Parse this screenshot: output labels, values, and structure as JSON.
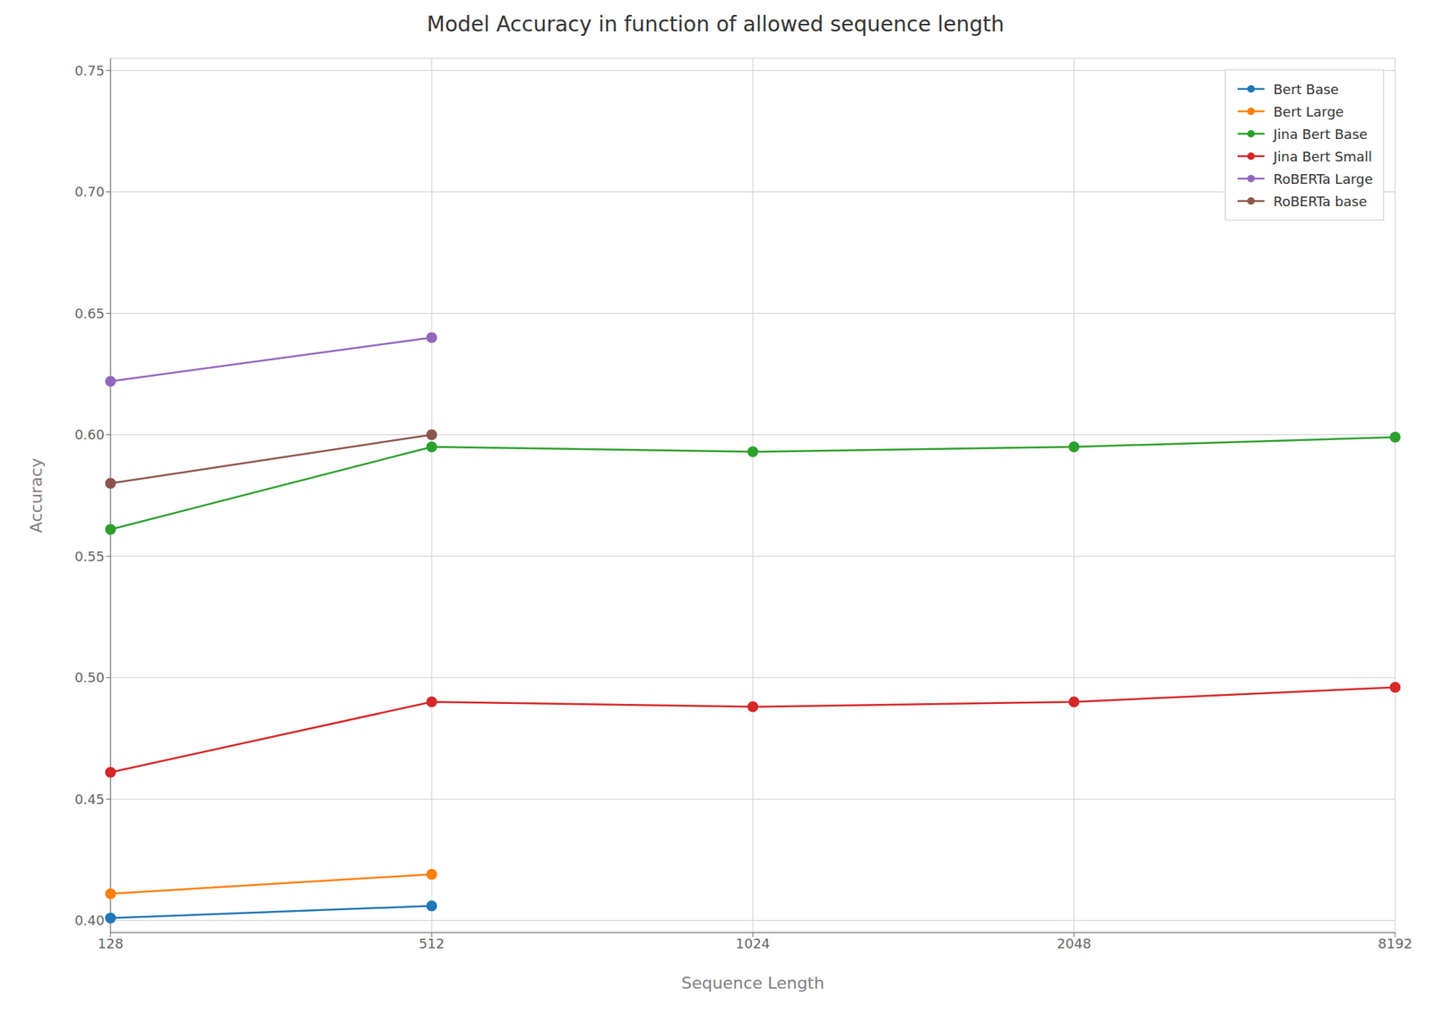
{
  "chart_data": {
    "type": "line",
    "title": "Model Accuracy in function of allowed sequence length",
    "xlabel": "Sequence Length",
    "ylabel": "Accuracy",
    "categories": [
      "128",
      "512",
      "1024",
      "2048",
      "8192"
    ],
    "series": [
      {
        "name": "Bert Base",
        "color": "#1f77b4",
        "values": [
          0.401,
          0.406,
          null,
          null,
          null
        ]
      },
      {
        "name": "Bert Large",
        "color": "#ff7f0e",
        "values": [
          0.411,
          0.419,
          null,
          null,
          null
        ]
      },
      {
        "name": "Jina Bert Base",
        "color": "#2ca02c",
        "values": [
          0.561,
          0.595,
          0.593,
          0.595,
          0.599
        ]
      },
      {
        "name": "Jina Bert Small",
        "color": "#d62728",
        "values": [
          0.461,
          0.49,
          0.488,
          0.49,
          0.496
        ]
      },
      {
        "name": "RoBERTa Large",
        "color": "#9467bd",
        "values": [
          0.622,
          0.64,
          null,
          null,
          null
        ]
      },
      {
        "name": "RoBERTa base",
        "color": "#8c564b",
        "values": [
          0.58,
          0.6,
          null,
          null,
          null
        ]
      }
    ],
    "ylim": [
      0.395,
      0.755
    ],
    "yticks": [
      {
        "value": 0.4,
        "label": "0.40"
      },
      0.45,
      {
        "value": 0.5,
        "label": "0.50"
      },
      0.55,
      {
        "value": 0.6,
        "label": "0.60"
      },
      0.65,
      {
        "value": 0.7,
        "label": "0.70"
      },
      0.75
    ],
    "grid": true,
    "legend": "upper right",
    "marker": "circle",
    "line_style": "solid"
  }
}
